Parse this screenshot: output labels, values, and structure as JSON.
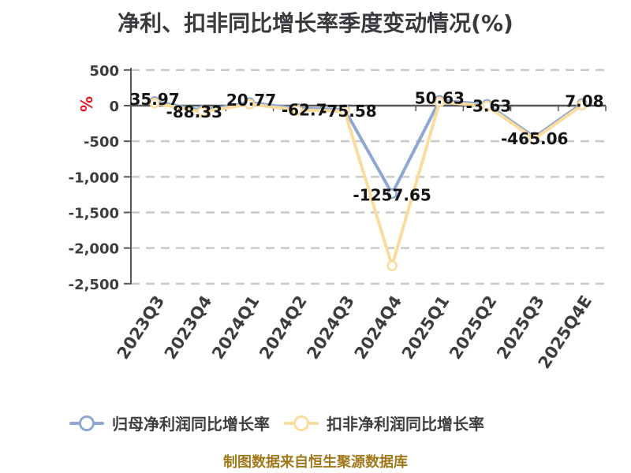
{
  "title": "净利、扣非同比增长率季度变动情况(%)",
  "y_axis": {
    "unit": "%",
    "tick_labels": [
      "500",
      "0",
      "-500",
      "-1,000",
      "-1,500",
      "-2,000",
      "-2,500"
    ],
    "tick_values": [
      500,
      0,
      -500,
      -1000,
      -1500,
      -2000,
      -2500
    ]
  },
  "chart_data": {
    "type": "line",
    "title": "净利、扣非同比增长率季度变动情况(%)",
    "categories": [
      "2023Q3",
      "2023Q4",
      "2024Q1",
      "2024Q2",
      "2024Q3",
      "2024Q4",
      "2025Q1",
      "2025Q2",
      "2025Q3",
      "2025Q4E"
    ],
    "series": [
      {
        "name": "归母净利润同比增长率",
        "color": "#8fa8d2",
        "values": [
          35.97,
          -88.33,
          20.77,
          -62.7,
          -75.58,
          -1257.65,
          50.63,
          -3.63,
          -465.06,
          7.08
        ]
      },
      {
        "name": "扣非净利润同比增长率",
        "color": "#fadc9e",
        "values": [
          35.97,
          -88.33,
          20.77,
          -62.7,
          -75.58,
          -2250,
          50.63,
          -3.63,
          -465.06,
          7.08
        ]
      }
    ],
    "point_labels": [
      "35.97",
      "-88.33",
      "20.77",
      "-62.7",
      "-75.58",
      "-1257.65",
      "50.63",
      "-3.63",
      "-465.06",
      "7.08"
    ],
    "ylim": [
      -2500,
      500
    ],
    "xlabel": "",
    "ylabel": "%",
    "grid": "horizontal-dashed",
    "legend_position": "bottom",
    "marker": "circle-white-fill"
  },
  "legend": {
    "items": [
      {
        "label": "归母净利润同比增长率"
      },
      {
        "label": "扣非净利润同比增长率"
      }
    ]
  },
  "footer": {
    "source_text": "制图数据来自恒生聚源数据库"
  },
  "colors": {
    "title_text": "#3a3a3e",
    "axis_line": "#54585c",
    "grid_line": "#c9c9c9",
    "tick_text": "#3d3d3d",
    "data_label_text": "#131313",
    "unit_text": "#e31420",
    "legend_text": "#3f3f3f",
    "footer_text": "#a0791c",
    "marker_fill": "#ffffff",
    "background": "#ffffff"
  }
}
